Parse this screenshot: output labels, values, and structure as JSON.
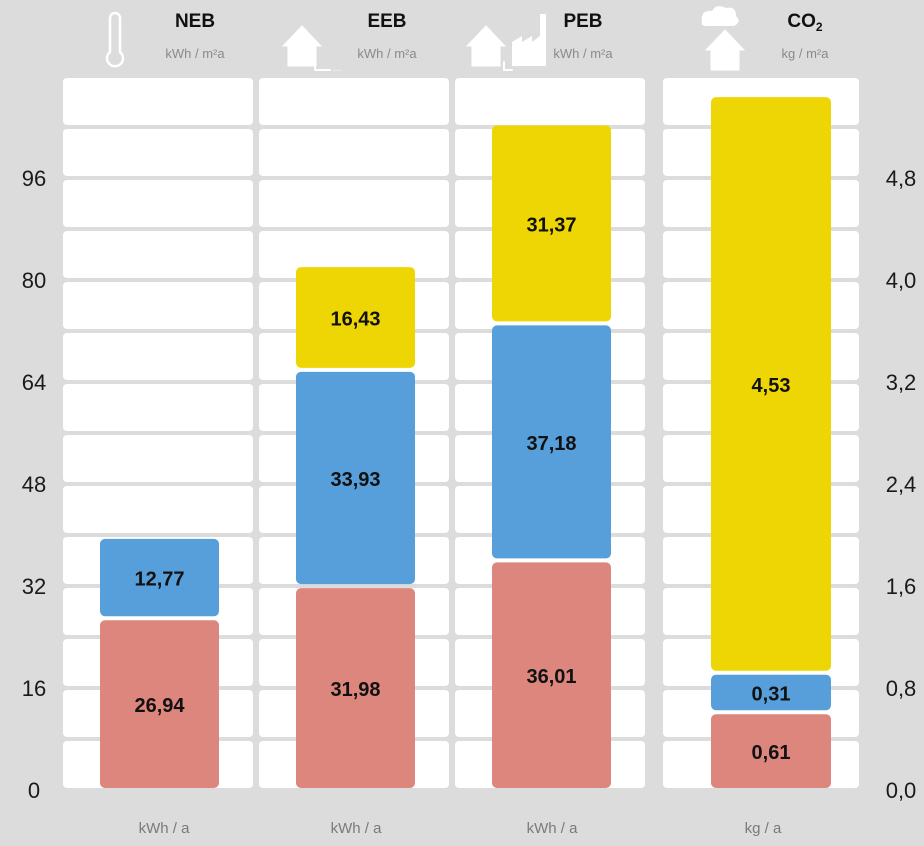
{
  "chart_data": {
    "type": "bar",
    "stacked": true,
    "grid": true,
    "categories": [
      {
        "label": "NEB",
        "unit": "kWh / m²a",
        "bottom_unit": "kWh / a",
        "icon": "thermometer-icon"
      },
      {
        "label": "EEB",
        "unit": "kWh / m²a",
        "bottom_unit": "kWh / a",
        "icon": "house-plug-icon"
      },
      {
        "label": "PEB",
        "unit": "kWh / m²a",
        "bottom_unit": "kWh / a",
        "icon": "house-factory-icon"
      },
      {
        "label": "CO",
        "label_sub": "2",
        "unit": "kg / m²a",
        "bottom_unit": "kg / a",
        "icon": "house-cloud-icon"
      }
    ],
    "series_colors": [
      "#dc867d",
      "#579fda",
      "#eed504"
    ],
    "stacks": [
      {
        "axis": "left",
        "segments": [
          {
            "value": 26.94,
            "label": "26,94"
          },
          {
            "value": 12.77,
            "label": "12,77"
          }
        ]
      },
      {
        "axis": "left",
        "segments": [
          {
            "value": 31.98,
            "label": "31,98"
          },
          {
            "value": 33.93,
            "label": "33,93"
          },
          {
            "value": 16.43,
            "label": "16,43"
          }
        ]
      },
      {
        "axis": "left",
        "segments": [
          {
            "value": 36.01,
            "label": "36,01"
          },
          {
            "value": 37.18,
            "label": "37,18"
          },
          {
            "value": 31.37,
            "label": "31,37"
          }
        ]
      },
      {
        "axis": "right",
        "segments": [
          {
            "value": 0.61,
            "label": "0,61"
          },
          {
            "value": 0.31,
            "label": "0,31"
          },
          {
            "value": 4.53,
            "label": "4,53"
          }
        ]
      }
    ],
    "left_axis": {
      "ylim": [
        0,
        112
      ],
      "ticks": [
        0,
        16,
        32,
        48,
        64,
        80,
        96
      ],
      "tick_labels": [
        "0",
        "16",
        "32",
        "48",
        "64",
        "80",
        "96"
      ]
    },
    "right_axis": {
      "ylim": [
        0,
        5.6
      ],
      "ticks": [
        0,
        0.8,
        1.6,
        2.4,
        3.2,
        4.0,
        4.8
      ],
      "tick_labels": [
        "0,0",
        "0,8",
        "1,6",
        "2,4",
        "3,2",
        "4,0",
        "4,8"
      ]
    },
    "gridline_step": 8
  }
}
